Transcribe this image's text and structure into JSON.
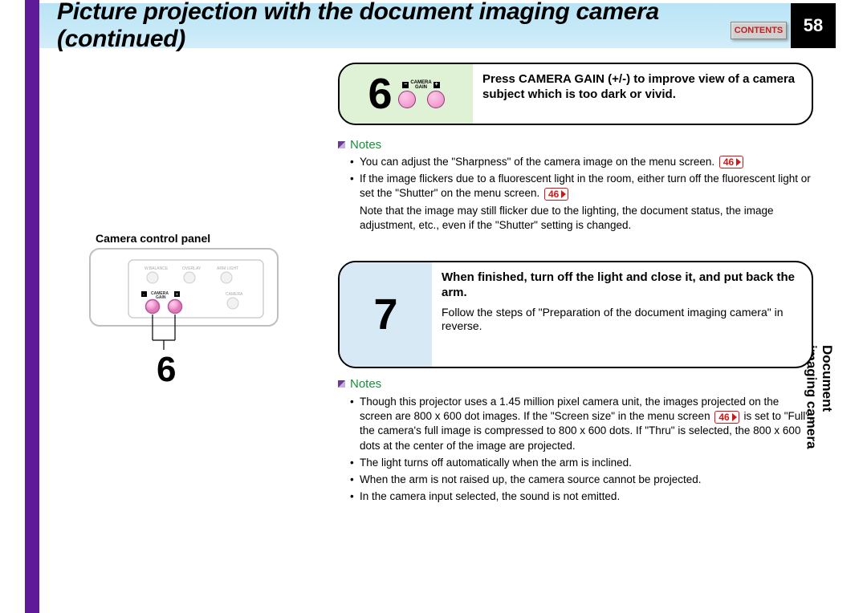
{
  "header": {
    "title": "Picture projection with the document imaging camera (continued)",
    "contents_btn": "CONTENTS",
    "page_number": "58"
  },
  "side_tab": {
    "line1": "Document",
    "line2": "imaging camera"
  },
  "left": {
    "panel_label": "Camera control panel",
    "big_step_ref": "6",
    "panel": {
      "btn_labels": [
        "W.BALANCE",
        "OVERLAY",
        "ARM LIGHT",
        "CAMERA"
      ],
      "gain_label_top": "CAMERA",
      "gain_label_bottom": "GAIN",
      "colors": {
        "pink_fill": "#f5a5d5",
        "line": "#b854a0"
      }
    }
  },
  "step6": {
    "num": "6",
    "gain_top": "CAMERA",
    "gain_bottom": "GAIN",
    "text": "Press CAMERA GAIN (+/-) to improve view of a camera subject which is too dark or vivid."
  },
  "step7": {
    "num": "7",
    "text": "When finished, turn off the light and close it, and put back the arm.",
    "sub": "Follow the steps of \"Preparation of the document imaging camera\" in reverse."
  },
  "notes_label": "Notes",
  "ref": "46",
  "notes1": {
    "items": [
      {
        "t": "You can adjust the \"Sharpness\" of the camera image on the menu screen.",
        "ref": true
      },
      {
        "t": "If the image flickers due to a fluorescent light in the room, either turn off the fluorescent light or set the \"Shutter\" on the menu screen.",
        "ref": true
      },
      {
        "t": "Note that the image may still flicker due to the lighting, the document status, the image adjustment, etc., even if the \"Shutter\" setting is changed.",
        "indent": true
      }
    ]
  },
  "notes2": {
    "items": [
      {
        "pre": "Though this projector uses a 1.45 million pixel camera unit, the images projected on the screen are 800 x 600 dot images.  If the \"Screen size\" in the menu screen",
        "ref": true,
        "post": " is set to \"Full\", the camera's full image is compressed to 800 x 600 dots.  If \"Thru\" is selected, the 800 x 600 dots at the center of the image are projected."
      },
      {
        "t": "The light turns off automatically when the arm is inclined."
      },
      {
        "t": "When the arm is not raised up, the camera source cannot be projected."
      },
      {
        "t": "In the camera input selected, the sound is not emitted."
      }
    ]
  },
  "colors": {
    "purple": "#5e1a99",
    "band_top": "#b8e4f5",
    "green_bg": "#dff2d5",
    "blue_bg": "#d6e9f5",
    "notes_green": "#1a8f3a",
    "ref_red": "#d01818"
  }
}
